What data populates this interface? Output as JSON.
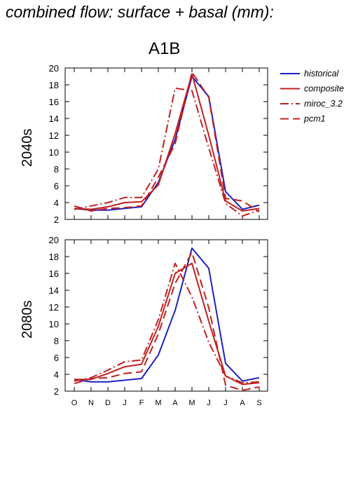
{
  "title": "combined flow: surface + basal (mm):",
  "colors": {
    "historical": "#2020c0",
    "model": "#c02020"
  },
  "chart_data": {
    "type": "line",
    "title": "A1B",
    "categories": [
      "O",
      "N",
      "D",
      "J",
      "F",
      "M",
      "A",
      "M",
      "J",
      "J",
      "A",
      "S"
    ],
    "ylim": [
      2,
      20
    ],
    "yticks": [
      2,
      4,
      6,
      8,
      10,
      12,
      14,
      16,
      18,
      20
    ],
    "grid": false,
    "legend_position": "right",
    "legend": [
      {
        "name": "historical",
        "color": "#2020c0",
        "dash": "solid"
      },
      {
        "name": "composite",
        "color": "#c02020",
        "dash": "solid"
      },
      {
        "name": "miroc_3.2",
        "color": "#c02020",
        "dash": "dashdot"
      },
      {
        "name": "pcm1",
        "color": "#c02020",
        "dash": "dash"
      }
    ],
    "panels": [
      {
        "ylabel": "2040s",
        "series": [
          {
            "name": "historical",
            "values": [
              3.3,
              3.1,
              3.1,
              3.3,
              3.5,
              6.4,
              11.5,
              19.0,
              16.6,
              5.3,
              3.2,
              3.7
            ]
          },
          {
            "name": "composite",
            "values": [
              3.3,
              3.2,
              3.5,
              4.0,
              4.1,
              6.1,
              12.2,
              19.3,
              12.0,
              4.2,
              3.0,
              3.3
            ]
          },
          {
            "name": "miroc_3.2",
            "values": [
              3.2,
              3.6,
              4.0,
              4.6,
              4.6,
              8.0,
              17.6,
              17.3,
              10.5,
              3.9,
              2.4,
              3.1
            ]
          },
          {
            "name": "pcm1",
            "values": [
              3.6,
              3.0,
              3.3,
              3.4,
              3.6,
              7.0,
              11.0,
              19.5,
              16.5,
              4.5,
              4.2,
              2.9
            ]
          }
        ]
      },
      {
        "ylabel": "2080s",
        "series": [
          {
            "name": "historical",
            "values": [
              3.4,
              3.1,
              3.1,
              3.3,
              3.5,
              6.3,
              11.6,
              19.0,
              16.6,
              5.3,
              3.2,
              3.6
            ]
          },
          {
            "name": "composite",
            "values": [
              3.4,
              3.4,
              4.1,
              4.9,
              5.2,
              9.7,
              16.0,
              17.2,
              10.3,
              3.8,
              2.8,
              3.0
            ]
          },
          {
            "name": "miroc_3.2",
            "values": [
              3.2,
              3.6,
              4.5,
              5.5,
              5.7,
              10.5,
              17.2,
              13.2,
              7.8,
              3.8,
              3.0,
              3.1
            ]
          },
          {
            "name": "pcm1",
            "values": [
              2.9,
              3.5,
              3.6,
              4.1,
              4.3,
              8.8,
              14.8,
              18.5,
              11.9,
              2.7,
              2.1,
              2.5
            ]
          }
        ]
      }
    ]
  }
}
